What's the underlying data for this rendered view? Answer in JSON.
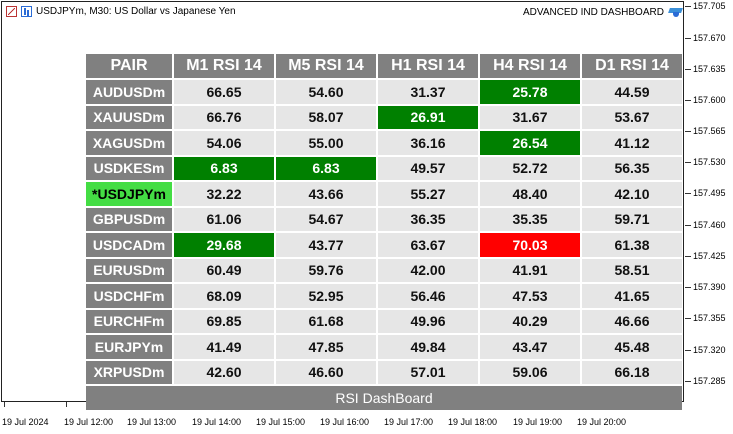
{
  "chart": {
    "symbol_info": "USDJPYm, M30:  US Dollar vs Japanese Yen",
    "indicator_name": "ADVANCED IND DASHBOARD",
    "price_labels": [
      "157.705",
      "157.670",
      "157.635",
      "157.600",
      "157.565",
      "157.530",
      "157.495",
      "157.460",
      "157.425",
      "157.390",
      "157.355",
      "157.320",
      "157.285"
    ],
    "time_labels": [
      "19 Jul 2024",
      "19 Jul 12:00",
      "19 Jul 13:00",
      "19 Jul 14:00",
      "19 Jul 15:00",
      "19 Jul 16:00",
      "19 Jul 17:00",
      "19 Jul 18:00",
      "19 Jul 19:00",
      "19 Jul 20:00"
    ]
  },
  "dashboard": {
    "corner_label": "PAIR",
    "columns": [
      "M1 RSI 14",
      "M5 RSI 14",
      "H1 RSI 14",
      "H4 RSI 14",
      "D1 RSI 14"
    ],
    "rows": [
      {
        "pair": "AUDUSDm",
        "active": false,
        "values": [
          "66.65",
          "54.60",
          "31.37",
          "25.78",
          "44.59"
        ],
        "states": [
          "n",
          "n",
          "n",
          "g",
          "n"
        ]
      },
      {
        "pair": "XAUUSDm",
        "active": false,
        "values": [
          "66.76",
          "58.07",
          "26.91",
          "31.67",
          "53.67"
        ],
        "states": [
          "n",
          "n",
          "g",
          "n",
          "n"
        ]
      },
      {
        "pair": "XAGUSDm",
        "active": false,
        "values": [
          "54.06",
          "55.00",
          "36.16",
          "26.54",
          "41.12"
        ],
        "states": [
          "n",
          "n",
          "n",
          "g",
          "n"
        ]
      },
      {
        "pair": "USDKESm",
        "active": false,
        "values": [
          "6.83",
          "6.83",
          "49.57",
          "52.72",
          "56.35"
        ],
        "states": [
          "g",
          "g",
          "n",
          "n",
          "n"
        ]
      },
      {
        "pair": "*USDJPYm",
        "active": true,
        "values": [
          "32.22",
          "43.66",
          "55.27",
          "48.40",
          "42.10"
        ],
        "states": [
          "n",
          "n",
          "n",
          "n",
          "n"
        ]
      },
      {
        "pair": "GBPUSDm",
        "active": false,
        "values": [
          "61.06",
          "54.67",
          "36.35",
          "35.35",
          "59.71"
        ],
        "states": [
          "n",
          "n",
          "n",
          "n",
          "n"
        ]
      },
      {
        "pair": "USDCADm",
        "active": false,
        "values": [
          "29.68",
          "43.77",
          "63.67",
          "70.03",
          "61.38"
        ],
        "states": [
          "g",
          "n",
          "n",
          "r",
          "n"
        ]
      },
      {
        "pair": "EURUSDm",
        "active": false,
        "values": [
          "60.49",
          "59.76",
          "42.00",
          "41.91",
          "58.51"
        ],
        "states": [
          "n",
          "n",
          "n",
          "n",
          "n"
        ]
      },
      {
        "pair": "USDCHFm",
        "active": false,
        "values": [
          "68.09",
          "52.95",
          "56.46",
          "47.53",
          "41.65"
        ],
        "states": [
          "n",
          "n",
          "n",
          "n",
          "n"
        ]
      },
      {
        "pair": "EURCHFm",
        "active": false,
        "values": [
          "69.85",
          "61.68",
          "49.96",
          "40.29",
          "46.66"
        ],
        "states": [
          "n",
          "n",
          "n",
          "n",
          "n"
        ]
      },
      {
        "pair": "EURJPYm",
        "active": false,
        "values": [
          "41.49",
          "47.85",
          "49.84",
          "43.47",
          "45.48"
        ],
        "states": [
          "n",
          "n",
          "n",
          "n",
          "n"
        ]
      },
      {
        "pair": "XRPUSDm",
        "active": false,
        "values": [
          "42.60",
          "46.60",
          "57.01",
          "59.06",
          "66.18"
        ],
        "states": [
          "n",
          "n",
          "n",
          "n",
          "n"
        ]
      }
    ],
    "footer": "RSI DashBoard",
    "colors": {
      "oversold": "#008000",
      "overbought": "#ff0000",
      "active_pair": "#44dd44",
      "header": "#808080",
      "cell": "#e6e6e6"
    }
  }
}
